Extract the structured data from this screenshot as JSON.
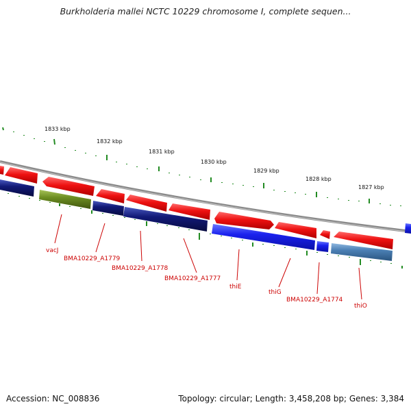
{
  "header": {
    "title": "Burkholderia mallei NCTC 10229 chromosome I, complete sequen..."
  },
  "footer": {
    "accession": "Accession: NC_008836",
    "topology": "Topology: circular; Length: 3,458,208 bp; Genes: 3,384"
  },
  "scale": {
    "kbp_ticks": [
      "1833 kbp",
      "1832 kbp",
      "1831 kbp",
      "1830 kbp",
      "1829 kbp",
      "1828 kbp",
      "1827 kbp"
    ]
  },
  "genes": [
    "vacJ",
    "BMA10229_A1779",
    "BMA10229_A1778",
    "BMA10229_A1777",
    "thiE",
    "thiG",
    "BMA10229_A1774",
    "thiO"
  ],
  "colors": {
    "forward_cds": "#ee1111",
    "reverse_cds_dark": "#121a78",
    "reverse_cds_blue": "#1a22ee",
    "reverse_cds_olive": "#6d8e22",
    "reverse_cds_steel": "#4a7fb4",
    "backbone": "#8a8a8a",
    "gc_skew_ticks": "#228b22",
    "label": "#cc0000"
  }
}
